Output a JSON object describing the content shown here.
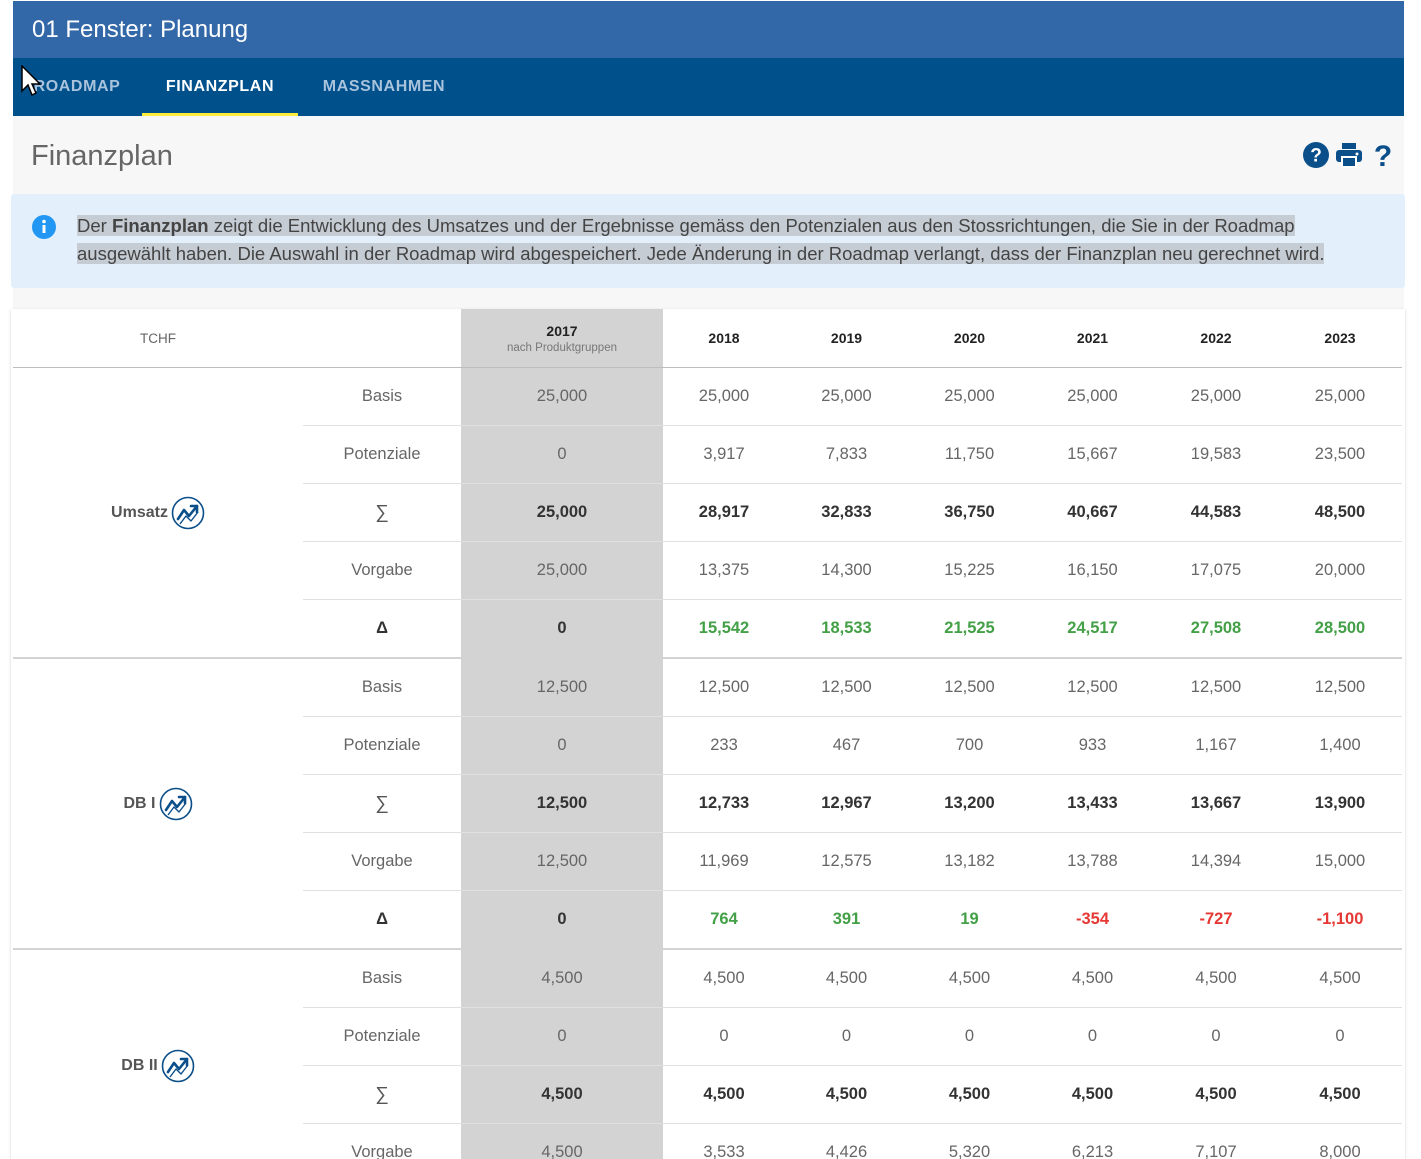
{
  "window": {
    "title": "01 Fenster: Planung"
  },
  "tabs": [
    {
      "label": "ROADMAP",
      "active": false
    },
    {
      "label": "FINANZPLAN",
      "active": true
    },
    {
      "label": "MASSNAHMEN",
      "active": false
    }
  ],
  "page": {
    "title": "Finanzplan",
    "icons": [
      "help-circle-icon",
      "print-icon",
      "help-icon"
    ]
  },
  "info": {
    "icon": "info-icon",
    "prefix": "Der ",
    "bold": "Finanzplan",
    "text": " zeigt die Entwicklung des Umsatzes und der Ergebnisse gemäss den Potenzialen aus den Stossrichtungen, die Sie in der Roadmap ausgewählt haben. Die Auswahl in der Roadmap wird abgespeichert. Jede Änderung in der Roadmap verlangt, dass der Finanzplan neu gerechnet wird."
  },
  "table": {
    "unit_header": "TCHF",
    "years": [
      "2017",
      "2018",
      "2019",
      "2020",
      "2021",
      "2022",
      "2023"
    ],
    "year_2017_sub": "nach Produktgruppen",
    "groups": [
      {
        "name": "Umsatz",
        "rows": [
          {
            "label": "Basis",
            "type": "normal",
            "values": [
              "25,000",
              "25,000",
              "25,000",
              "25,000",
              "25,000",
              "25,000",
              "25,000"
            ]
          },
          {
            "label": "Potenziale",
            "type": "normal",
            "values": [
              "0",
              "3,917",
              "7,833",
              "11,750",
              "15,667",
              "19,583",
              "23,500"
            ]
          },
          {
            "label": "∑",
            "type": "sum",
            "values": [
              "25,000",
              "28,917",
              "32,833",
              "36,750",
              "40,667",
              "44,583",
              "48,500"
            ]
          },
          {
            "label": "Vorgabe",
            "type": "normal",
            "values": [
              "25,000",
              "13,375",
              "14,300",
              "15,225",
              "16,150",
              "17,075",
              "20,000"
            ]
          },
          {
            "label": "Δ",
            "type": "delta",
            "values": [
              "0",
              "15,542",
              "18,533",
              "21,525",
              "24,517",
              "27,508",
              "28,500"
            ]
          }
        ]
      },
      {
        "name": "DB I",
        "rows": [
          {
            "label": "Basis",
            "type": "normal",
            "values": [
              "12,500",
              "12,500",
              "12,500",
              "12,500",
              "12,500",
              "12,500",
              "12,500"
            ]
          },
          {
            "label": "Potenziale",
            "type": "normal",
            "values": [
              "0",
              "233",
              "467",
              "700",
              "933",
              "1,167",
              "1,400"
            ]
          },
          {
            "label": "∑",
            "type": "sum",
            "values": [
              "12,500",
              "12,733",
              "12,967",
              "13,200",
              "13,433",
              "13,667",
              "13,900"
            ]
          },
          {
            "label": "Vorgabe",
            "type": "normal",
            "values": [
              "12,500",
              "11,969",
              "12,575",
              "13,182",
              "13,788",
              "14,394",
              "15,000"
            ]
          },
          {
            "label": "Δ",
            "type": "delta",
            "values": [
              "0",
              "764",
              "391",
              "19",
              "-354",
              "-727",
              "-1,100"
            ]
          }
        ]
      },
      {
        "name": "DB II",
        "rows": [
          {
            "label": "Basis",
            "type": "normal",
            "values": [
              "4,500",
              "4,500",
              "4,500",
              "4,500",
              "4,500",
              "4,500",
              "4,500"
            ]
          },
          {
            "label": "Potenziale",
            "type": "normal",
            "values": [
              "0",
              "0",
              "0",
              "0",
              "0",
              "0",
              "0"
            ]
          },
          {
            "label": "∑",
            "type": "sum",
            "values": [
              "4,500",
              "4,500",
              "4,500",
              "4,500",
              "4,500",
              "4,500",
              "4,500"
            ]
          },
          {
            "label": "Vorgabe",
            "type": "normal",
            "values": [
              "4,500",
              "3,533",
              "4,426",
              "5,320",
              "6,213",
              "7,107",
              "8,000"
            ]
          }
        ]
      }
    ]
  },
  "colors": {
    "title_bar": "#3267a8",
    "tab_bar": "#00508c",
    "tab_indicator": "#ffeb3b",
    "positive": "#43a047",
    "negative": "#e53935",
    "highlight_column": "#d3d3d3"
  }
}
